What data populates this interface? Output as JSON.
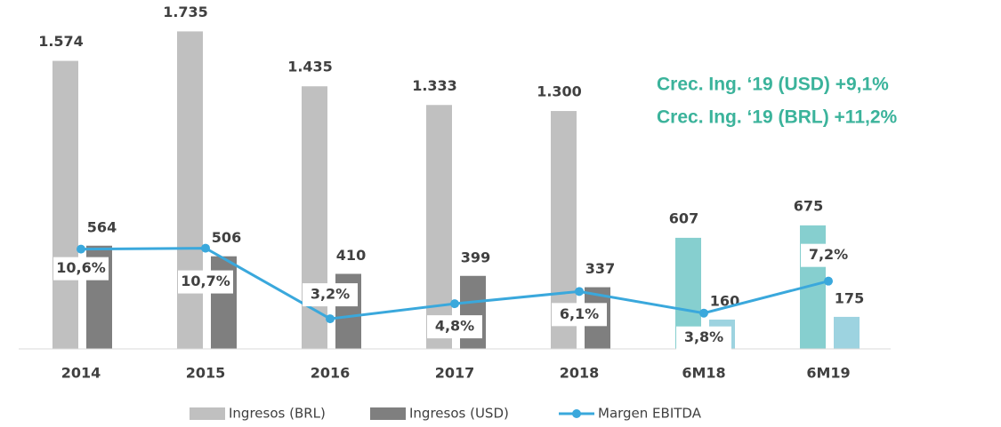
{
  "chart_data": {
    "type": "bar",
    "categories": [
      "2014",
      "2015",
      "2016",
      "2017",
      "2018",
      "6M18",
      "6M19"
    ],
    "series": [
      {
        "name": "Ingresos (BRL)",
        "color": "#c0c0c0",
        "colors": [
          "#c0c0c0",
          "#c0c0c0",
          "#c0c0c0",
          "#c0c0c0",
          "#c0c0c0",
          "#86cfcf",
          "#86cfcf"
        ],
        "values": [
          1574,
          1735,
          1435,
          1333,
          1300,
          607,
          675
        ],
        "value_labels": [
          "1.574",
          "1.735",
          "1.435",
          "1.333",
          "1.300",
          "607",
          "675"
        ]
      },
      {
        "name": "Ingresos (USD)",
        "color": "#7f7f7f",
        "colors": [
          "#7f7f7f",
          "#7f7f7f",
          "#7f7f7f",
          "#7f7f7f",
          "#7f7f7f",
          "#9dd3e0",
          "#9dd3e0"
        ],
        "values": [
          564,
          506,
          410,
          399,
          337,
          160,
          175
        ]
      },
      {
        "name": "Margen EBITDA",
        "type": "line",
        "axis": "y2",
        "color": "#3aa8dc",
        "values": [
          10.6,
          10.7,
          3.2,
          4.8,
          6.1,
          3.8,
          7.2
        ],
        "value_labels": [
          "10,6%",
          "10,7%",
          "3,2%",
          "4,8%",
          "6,1%",
          "3,8%",
          "7,2%"
        ]
      }
    ],
    "ylim": [
      0,
      1800
    ],
    "y2lim": [
      0,
      35
    ],
    "annotations": [
      "Crec. Ing. ‘19 (USD) +9,1%",
      "Crec. Ing. ‘19 (BRL) +11,2%"
    ]
  }
}
